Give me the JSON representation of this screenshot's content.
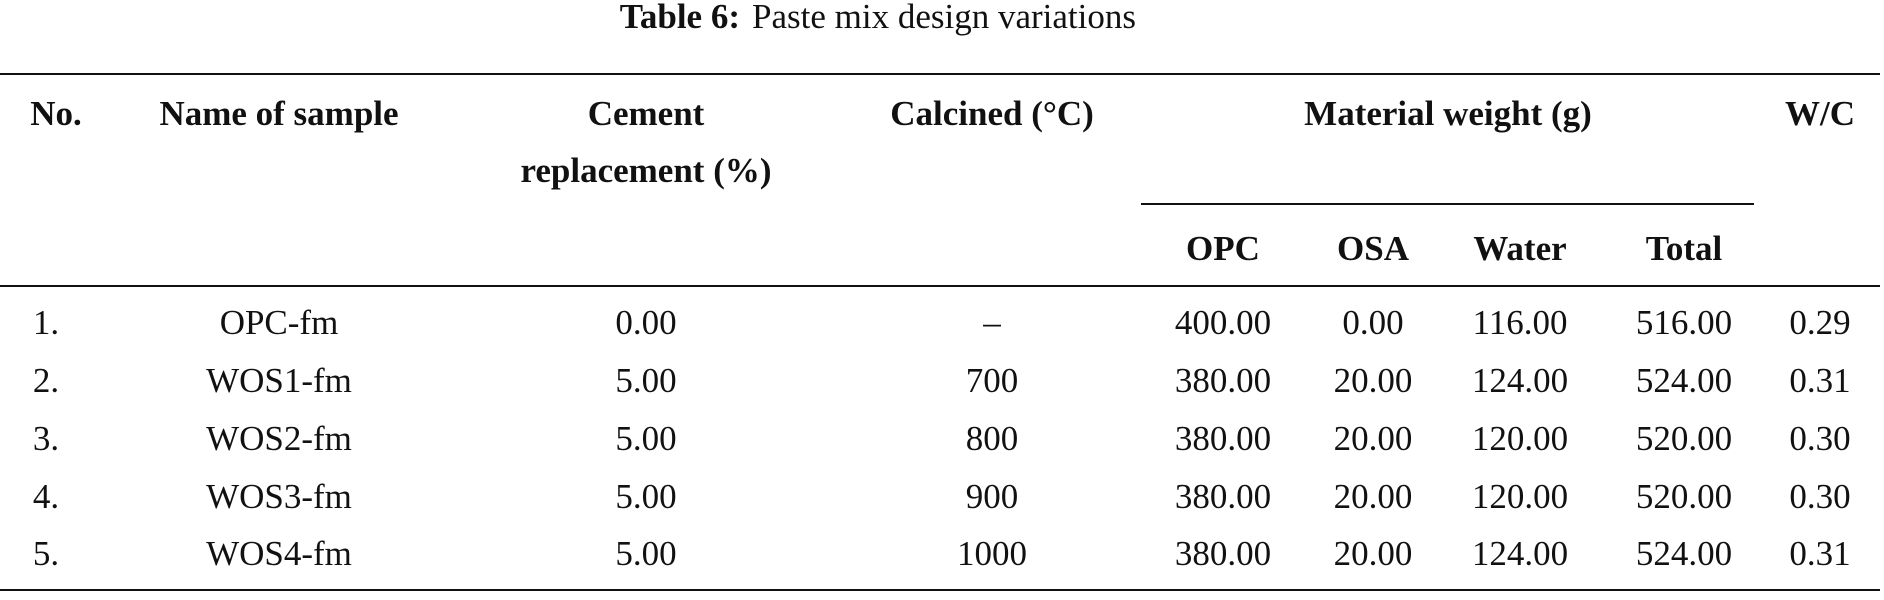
{
  "title": {
    "label": "Table 6:",
    "text": "Paste mix design variations"
  },
  "table": {
    "columns": [
      [
        "No."
      ],
      [
        "Name of sample"
      ],
      [
        "Cement",
        "replacement (%)"
      ],
      [
        "Calcined (°C)"
      ],
      [
        "Material weight (g)"
      ],
      [
        "W/C"
      ]
    ],
    "subcolumns": [
      "OPC",
      "OSA",
      "Water",
      "Total"
    ],
    "rows": [
      [
        "1.",
        "OPC-fm",
        "0.00",
        "–",
        "400.00",
        "0.00",
        "116.00",
        "516.00",
        "0.29"
      ],
      [
        "2.",
        "WOS1-fm",
        "5.00",
        "700",
        "380.00",
        "20.00",
        "124.00",
        "524.00",
        "0.31"
      ],
      [
        "3.",
        "WOS2-fm",
        "5.00",
        "800",
        "380.00",
        "20.00",
        "120.00",
        "520.00",
        "0.30"
      ],
      [
        "4.",
        "WOS3-fm",
        "5.00",
        "900",
        "380.00",
        "20.00",
        "120.00",
        "520.00",
        "0.30"
      ],
      [
        "5.",
        "WOS4-fm",
        "5.00",
        "1000",
        "380.00",
        "20.00",
        "124.00",
        "524.00",
        "0.31"
      ]
    ]
  }
}
